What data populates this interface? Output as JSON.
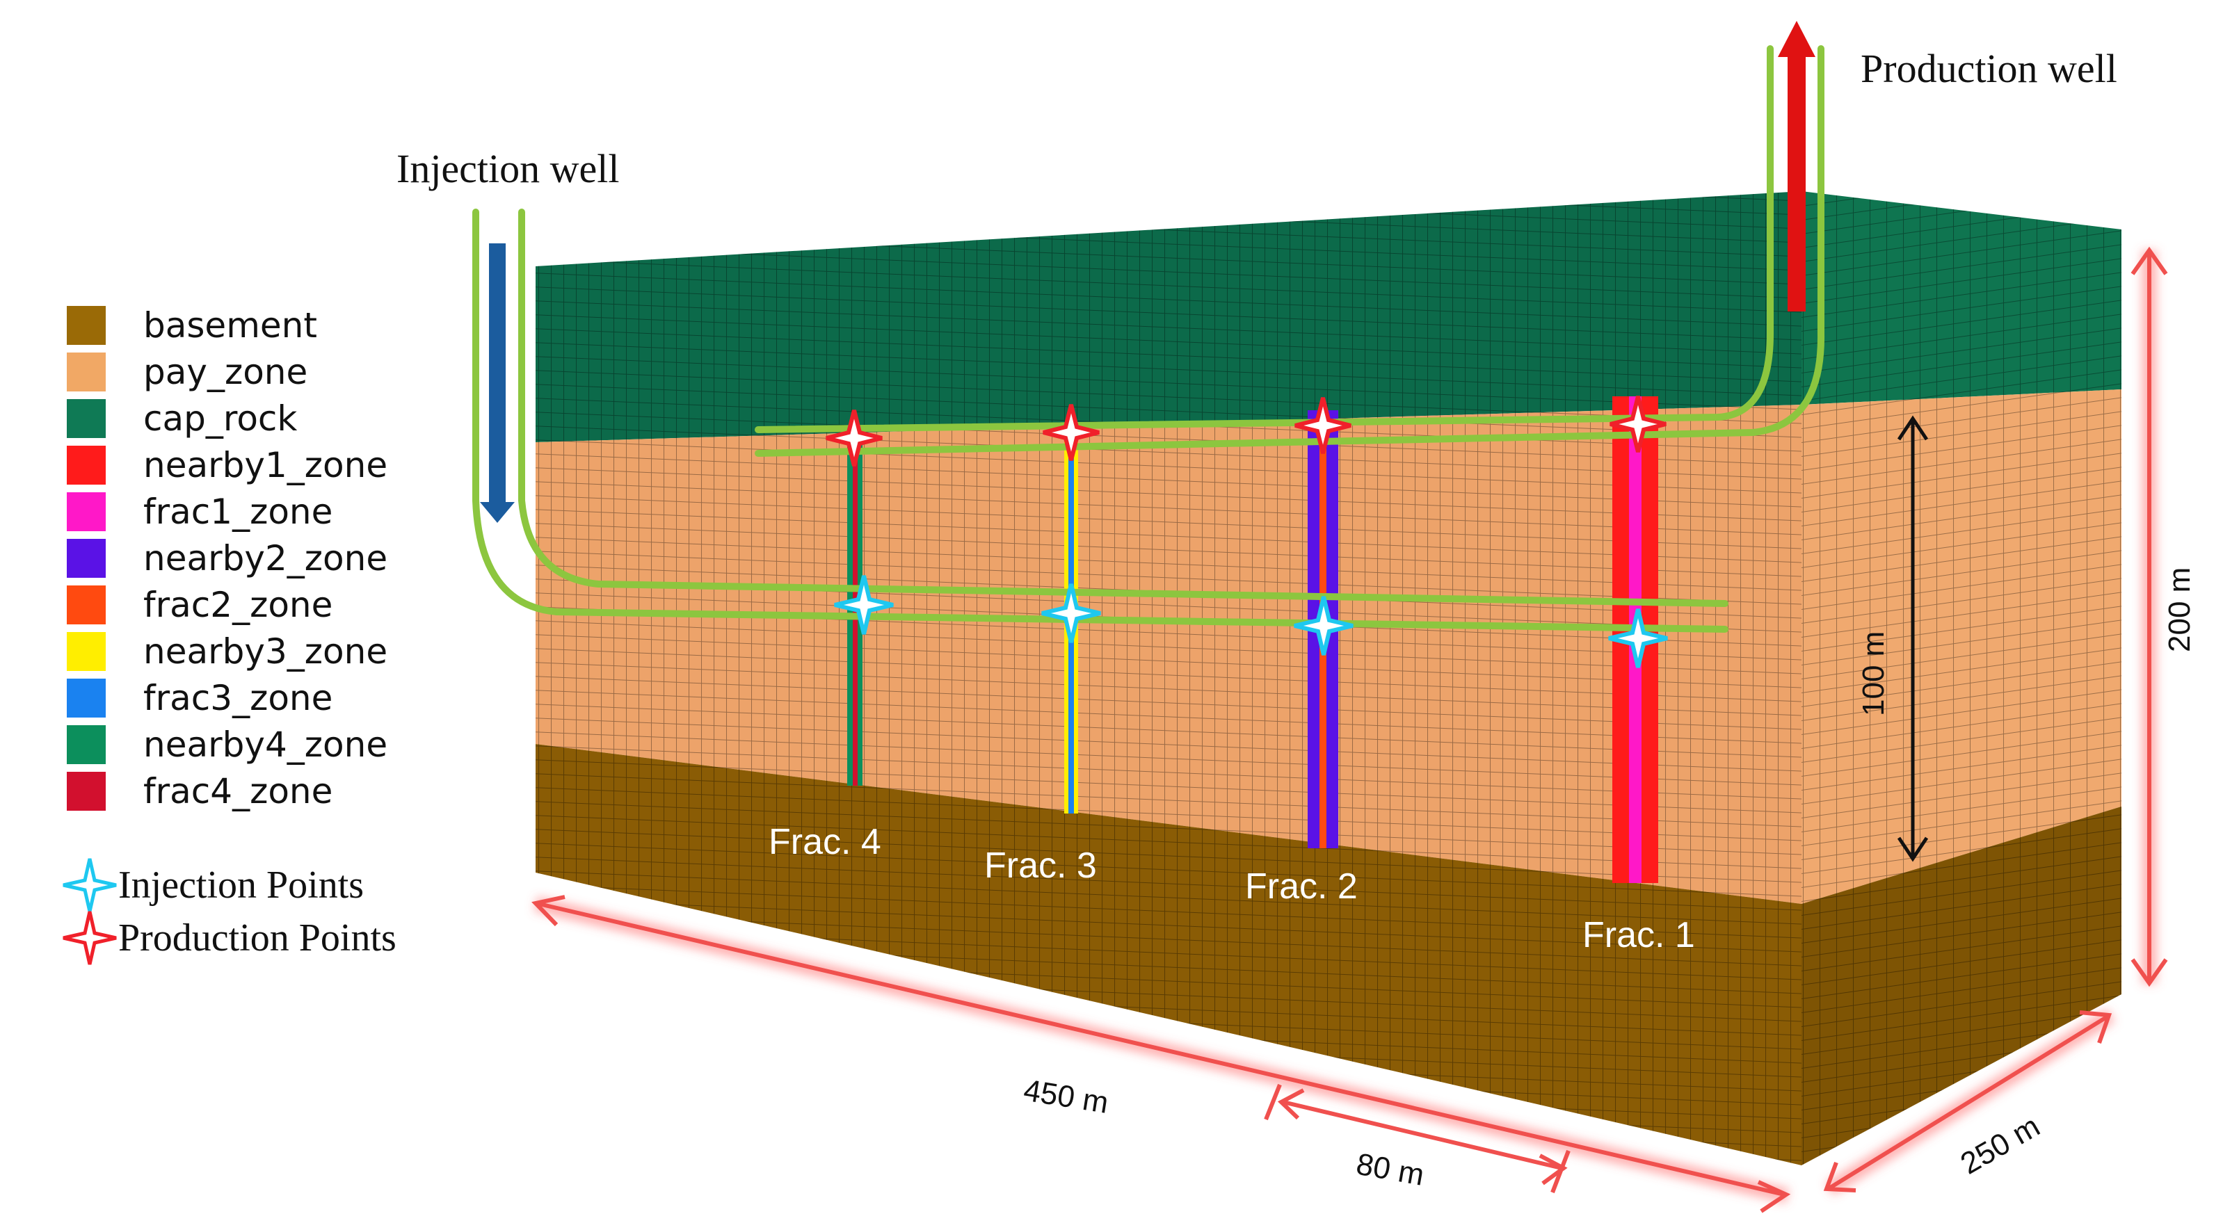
{
  "legend": {
    "items": [
      {
        "label": "basement",
        "color": "#9a6a06"
      },
      {
        "label": "pay_zone",
        "color": "#f1a865"
      },
      {
        "label": "cap_rock",
        "color": "#0f7a55"
      },
      {
        "label": "nearby1_zone",
        "color": "#ff1b1b"
      },
      {
        "label": "frac1_zone",
        "color": "#ff18c8"
      },
      {
        "label": "nearby2_zone",
        "color": "#5a12e6"
      },
      {
        "label": "frac2_zone",
        "color": "#ff4a10"
      },
      {
        "label": "nearby3_zone",
        "color": "#ffee00"
      },
      {
        "label": "frac3_zone",
        "color": "#1a82f0"
      },
      {
        "label": "nearby4_zone",
        "color": "#0c8f5c"
      },
      {
        "label": "frac4_zone",
        "color": "#d2102e"
      }
    ],
    "markers": [
      {
        "label": "Injection Points",
        "color": "#1ec8f0"
      },
      {
        "label": "Production Points",
        "color": "#f0202a"
      }
    ]
  },
  "wells": {
    "injection_label": "Injection well",
    "production_label": "Production well",
    "injection_arrow_color": "#1b5c9e",
    "production_arrow_color": "#e01212",
    "pipe_color": "#8cc63f"
  },
  "fractures": {
    "labels": [
      "Frac. 4",
      "Frac. 3",
      "Frac. 2",
      "Frac. 1"
    ]
  },
  "dimensions": {
    "length": "450 m",
    "spacing": "80 m",
    "width": "250 m",
    "height": "200 m",
    "pay_thickness": "100 m"
  }
}
